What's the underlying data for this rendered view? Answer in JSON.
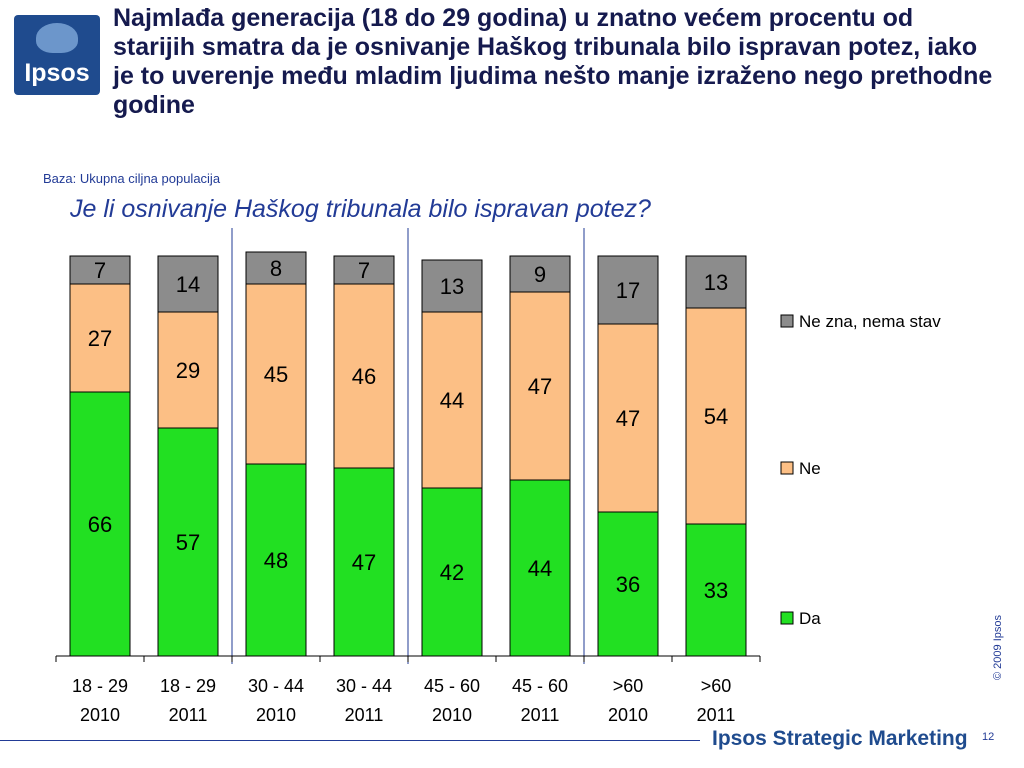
{
  "header": {
    "logo_text": "Ipsos",
    "title": "Najmlađa generacija (18 do 29 godina) u znatno većem procentu od starijih smatra da je osnivanje Haškog tribunala bilo ispravan potez, iako je to uverenje među mladim ljudima nešto manje izraženo nego prethodne godine"
  },
  "base_text": "Baza: Ukupna ciljna populacija",
  "question": "Je li osnivanje Haškog tribunala bilo ispravan potez?",
  "footer": {
    "copyright": "© 2009 Ipsos",
    "brand": "Ipsos Strategic Marketing",
    "page": "12"
  },
  "chart_data": {
    "type": "bar",
    "stacked": true,
    "categories": [
      [
        "18 - 29",
        "2010"
      ],
      [
        "18 - 29",
        "2011"
      ],
      [
        "30 - 44",
        "2010"
      ],
      [
        "30 - 44",
        "2011"
      ],
      [
        "45 - 60",
        "2010"
      ],
      [
        "45 - 60",
        "2011"
      ],
      [
        ">60",
        "2010"
      ],
      [
        ">60",
        "2011"
      ]
    ],
    "series": [
      {
        "name": "Da",
        "color": "#22e022",
        "values": [
          66,
          57,
          48,
          47,
          42,
          44,
          36,
          33
        ]
      },
      {
        "name": "Ne",
        "color": "#fcbf85",
        "values": [
          27,
          29,
          45,
          46,
          44,
          47,
          47,
          54
        ]
      },
      {
        "name": "Ne zna, nema stav",
        "color": "#8c8c8c",
        "values": [
          7,
          14,
          8,
          7,
          13,
          9,
          17,
          13
        ]
      }
    ],
    "legend_order": [
      "Ne zna, nema stav",
      "Ne",
      "Da"
    ],
    "legend_position": "right",
    "ylim": [
      0,
      100
    ],
    "grid": false,
    "group_separators_after": [
      1,
      3,
      5
    ]
  }
}
